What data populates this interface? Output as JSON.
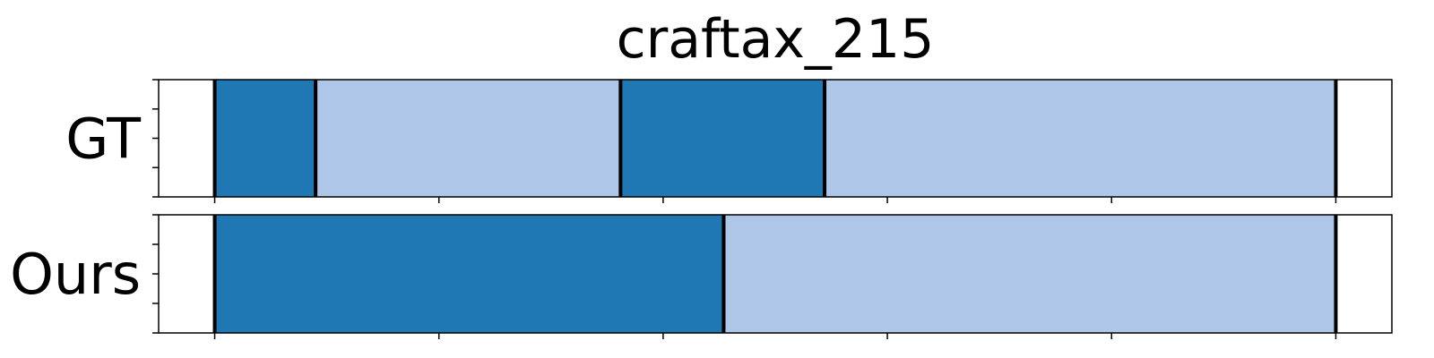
{
  "chart_data": {
    "type": "bar",
    "title": "craftax_215",
    "xlim": [
      0,
      550
    ],
    "rows": [
      {
        "label": "GT",
        "segments": [
          {
            "start": 25,
            "end": 70,
            "shade": "dark"
          },
          {
            "start": 70,
            "end": 206,
            "shade": "light"
          },
          {
            "start": 206,
            "end": 297,
            "shade": "dark"
          },
          {
            "start": 297,
            "end": 525,
            "shade": "light"
          }
        ],
        "boundaries": [
          25,
          70,
          206,
          297,
          525
        ]
      },
      {
        "label": "Ours",
        "segments": [
          {
            "start": 25,
            "end": 252,
            "shade": "dark"
          },
          {
            "start": 252,
            "end": 525,
            "shade": "light"
          }
        ],
        "boundaries": [
          25,
          252,
          525
        ]
      }
    ],
    "x_ticks": [
      25,
      125,
      225,
      325,
      425,
      525
    ],
    "colors": {
      "dark": "#1f77b4",
      "light": "#aec7e8",
      "boundary": "#000000"
    },
    "x_tick_labels_shown": false,
    "grid": false,
    "legend": "none"
  }
}
